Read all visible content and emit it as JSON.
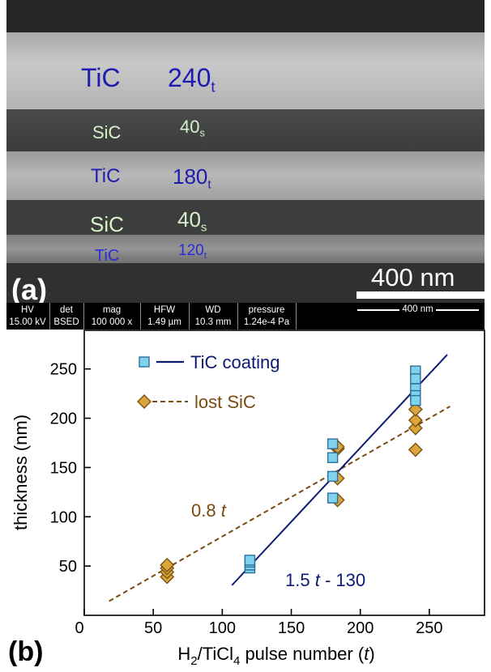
{
  "panel_a": {
    "panel_label": "(a)",
    "layers": [
      {
        "material": "TiC",
        "pulses": "240",
        "sub": "t"
      },
      {
        "material": "SiC",
        "pulses": "40",
        "sub": "s"
      },
      {
        "material": "TiC",
        "pulses": "180",
        "sub": "t"
      },
      {
        "material": "SiC",
        "pulses": "40",
        "sub": "s"
      },
      {
        "material": "TiC",
        "pulses": "120",
        "sub": "t"
      }
    ],
    "scale_bar": "400 nm",
    "info_bar": {
      "columns": [
        {
          "head": "HV",
          "value": "15.00 kV"
        },
        {
          "head": "det",
          "value": "BSED"
        },
        {
          "head": "mag",
          "value": "100 000 x"
        },
        {
          "head": "HFW",
          "value": "1.49 µm"
        },
        {
          "head": "WD",
          "value": "10.3 mm"
        },
        {
          "head": "pressure",
          "value": "1.24e-4 Pa"
        }
      ],
      "scale": "400 nm"
    }
  },
  "panel_b": {
    "panel_label": "(b)",
    "colors": {
      "tic": "#0d1a73",
      "tic_marker": "#7fd3ef",
      "sic": "#7a4b10",
      "sic_marker": "#d9a53c"
    }
  },
  "chart_data": {
    "type": "scatter",
    "xlabel": "H2/TiCl4 pulse number (t)",
    "ylabel": "thickness (nm)",
    "xlim": [
      0,
      290
    ],
    "ylim": [
      0,
      290
    ],
    "xticks": [
      0,
      50,
      100,
      150,
      200,
      250
    ],
    "yticks": [
      50,
      100,
      150,
      200,
      250
    ],
    "grid": false,
    "legend_position": "top-left",
    "series": [
      {
        "name": "TiC coating",
        "marker": "square",
        "points": [
          [
            120,
            48
          ],
          [
            120,
            51
          ],
          [
            120,
            54
          ],
          [
            120,
            56
          ],
          [
            180,
            174
          ],
          [
            180,
            160
          ],
          [
            180,
            141
          ],
          [
            180,
            119
          ],
          [
            240,
            248
          ],
          [
            240,
            240
          ],
          [
            240,
            230
          ],
          [
            240,
            223
          ],
          [
            240,
            218
          ]
        ],
        "fit": {
          "label_expr": "1.5",
          "label_var": "t",
          "label_tail": " - 130",
          "slope": 1.5,
          "intercept": -130,
          "x_range": [
            107,
            263
          ]
        }
      },
      {
        "name": "lost SiC",
        "marker": "diamond",
        "points": [
          [
            60,
            39
          ],
          [
            60,
            44
          ],
          [
            60,
            48
          ],
          [
            60,
            51
          ],
          [
            180,
            117
          ],
          [
            180,
            139
          ],
          [
            180,
            169
          ],
          [
            180,
            171
          ],
          [
            240,
            168
          ],
          [
            240,
            190
          ],
          [
            240,
            198
          ],
          [
            240,
            209
          ]
        ],
        "fit": {
          "label_expr": "0.8",
          "label_var": "t",
          "label_tail": "",
          "slope": 0.8,
          "intercept": 0,
          "x_range": [
            18,
            265
          ]
        }
      }
    ]
  }
}
